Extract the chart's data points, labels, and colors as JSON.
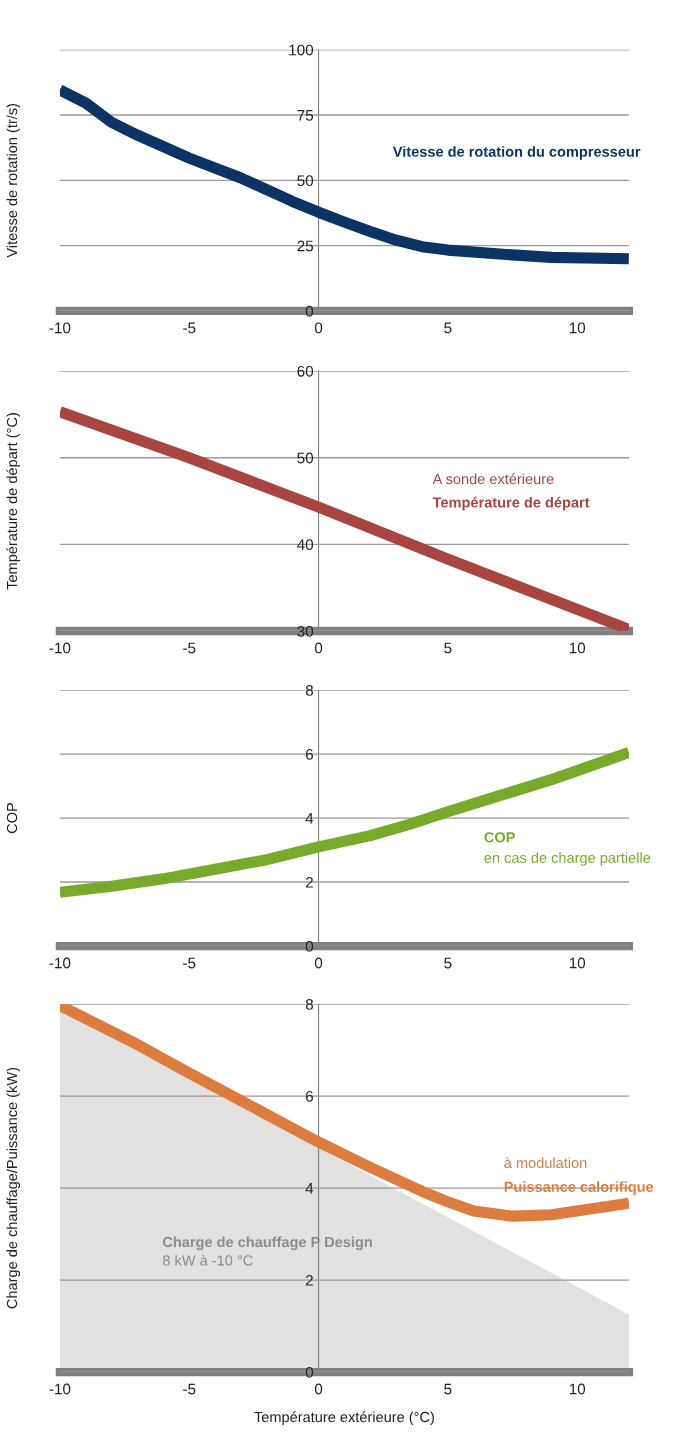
{
  "chart_data": [
    {
      "type": "line",
      "ylabel": "Vitesse de rotation (tr/s)",
      "xlim": [
        -10,
        12
      ],
      "xticks": [
        -10,
        -5,
        0,
        5,
        10
      ],
      "ylim": [
        0,
        100
      ],
      "yticks": [
        0,
        25,
        50,
        75,
        100
      ],
      "grid": "y",
      "series": [
        {
          "color": "#0b3465",
          "x": [
            -10,
            -9,
            -8,
            -7,
            -5,
            -3,
            -1,
            0,
            1,
            2,
            3,
            4,
            5,
            7,
            9,
            12
          ],
          "values": [
            84.6,
            79.6,
            72.2,
            67.3,
            58.5,
            50.9,
            41.9,
            37.8,
            34,
            30.4,
            27.1,
            24.6,
            23.3,
            21.8,
            20.5,
            20
          ]
        }
      ],
      "annotations": [
        "Vitesse de rotation du compresseur"
      ]
    },
    {
      "type": "line",
      "ylabel": "Température de départ (°C)",
      "xlim": [
        -10,
        12
      ],
      "xticks": [
        -10,
        -5,
        0,
        5,
        10
      ],
      "ylim": [
        30,
        60
      ],
      "yticks": [
        30,
        40,
        50,
        60
      ],
      "grid": "y",
      "series": [
        {
          "color": "#a94540",
          "x": [
            -10,
            -5,
            0,
            5,
            10,
            12
          ],
          "values": [
            55.3,
            50,
            44.3,
            38.3,
            32.5,
            30.2
          ]
        }
      ],
      "annotations": [
        "A sonde extérieure",
        "Température de départ"
      ]
    },
    {
      "type": "line",
      "ylabel": "COP",
      "xlim": [
        -10,
        12
      ],
      "xticks": [
        -10,
        -5,
        0,
        5,
        10
      ],
      "ylim": [
        0,
        8
      ],
      "yticks": [
        0,
        2,
        4,
        6,
        8
      ],
      "grid": "y",
      "series": [
        {
          "color": "#77aa2a",
          "x": [
            -10,
            -8,
            -6,
            -4,
            -2,
            0,
            2,
            3.5,
            5,
            7,
            9,
            12
          ],
          "values": [
            1.68,
            1.87,
            2.1,
            2.4,
            2.7,
            3.1,
            3.45,
            3.8,
            4.2,
            4.7,
            5.2,
            6.05
          ]
        }
      ],
      "annotations": [
        "COP",
        "en cas de charge partielle"
      ]
    },
    {
      "type": "line",
      "ylabel": "Charge de chauffage/Puissance (kW)",
      "xlabel": "Température extérieure (°C)",
      "xlim": [
        -10,
        12
      ],
      "xticks": [
        -10,
        -5,
        0,
        5,
        10
      ],
      "ylim": [
        0,
        8
      ],
      "yticks": [
        0,
        2,
        4,
        6,
        8
      ],
      "grid": "y",
      "series": [
        {
          "type": "area",
          "color": "#e1e1e1",
          "x": [
            -10,
            12
          ],
          "values": [
            7.9,
            1.25
          ]
        },
        {
          "color": "#dc7d3f",
          "x": [
            -10,
            -7,
            -5,
            -3,
            -1,
            0,
            2,
            4,
            5,
            6,
            7.5,
            9,
            12
          ],
          "values": [
            7.97,
            7.12,
            6.5,
            5.9,
            5.3,
            5.0,
            4.45,
            3.93,
            3.7,
            3.5,
            3.39,
            3.42,
            3.67
          ]
        }
      ],
      "annotations": [
        "à modulation",
        "Puissance calorifique",
        "Charge de chauffage P Design",
        "8 kW à -10 °C"
      ]
    }
  ]
}
